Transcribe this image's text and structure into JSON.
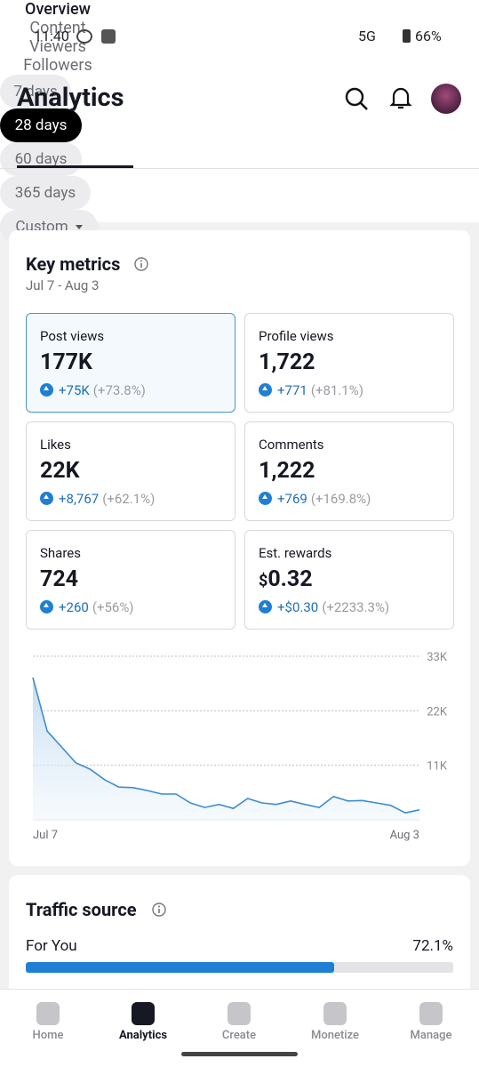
{
  "status_bar": {
    "time": "11:40",
    "network": "5G",
    "battery": "66%"
  },
  "header": {
    "title": "Analytics"
  },
  "tabs": [
    "Overview",
    "Content",
    "Viewers",
    "Followers"
  ],
  "date_ranges": [
    "7 days",
    "28 days",
    "60 days",
    "365 days",
    "Custom"
  ],
  "key_metrics": {
    "title": "Key metrics",
    "date_range": "Jul 7 - Aug 3",
    "metrics": [
      {
        "label": "Post views",
        "value": "177K",
        "change": "+75K",
        "percent": "(+73.8%)"
      },
      {
        "label": "Profile views",
        "value": "1,722",
        "change": "+771",
        "percent": "(+81.1%)"
      },
      {
        "label": "Likes",
        "value": "22K",
        "change": "+8,767",
        "percent": "(+62.1%)"
      },
      {
        "label": "Comments",
        "value": "1,222",
        "change": "+769",
        "percent": "(+169.8%)"
      },
      {
        "label": "Shares",
        "value": "724",
        "change": "+260",
        "percent": "(+56%)"
      },
      {
        "label": "Est. rewards",
        "currency": "$",
        "value": "0.32",
        "change": "+$0.30",
        "percent": "(+2233.3%)"
      }
    ]
  },
  "chart_data": {
    "type": "area",
    "color": "#3d8bd4",
    "categories": [
      "Jul 7",
      null,
      null,
      null,
      null,
      null,
      null,
      null,
      null,
      null,
      null,
      null,
      null,
      null,
      null,
      null,
      null,
      null,
      null,
      null,
      null,
      null,
      null,
      null,
      null,
      null,
      null,
      "Aug 3"
    ],
    "values": [
      28700,
      17900,
      14700,
      11500,
      10200,
      8100,
      6600,
      6500,
      5900,
      5200,
      5200,
      3400,
      2500,
      3100,
      2300,
      4300,
      3400,
      3100,
      3800,
      3100,
      2500,
      4700,
      3800,
      3900,
      3400,
      2900,
      1400,
      2000
    ],
    "ylim": [
      0,
      33000
    ],
    "yticks": [
      {
        "value": 11000,
        "label": "11K"
      },
      {
        "value": 22000,
        "label": "22K"
      },
      {
        "value": 33000,
        "label": "33K"
      }
    ],
    "grid": true
  },
  "traffic_source": {
    "title": "Traffic source",
    "sources": [
      {
        "name": "For You",
        "value": 72.1,
        "value_label": "72.1%"
      }
    ]
  },
  "nav": [
    "Home",
    "Analytics",
    "Create",
    "Monetize",
    "Manage"
  ]
}
